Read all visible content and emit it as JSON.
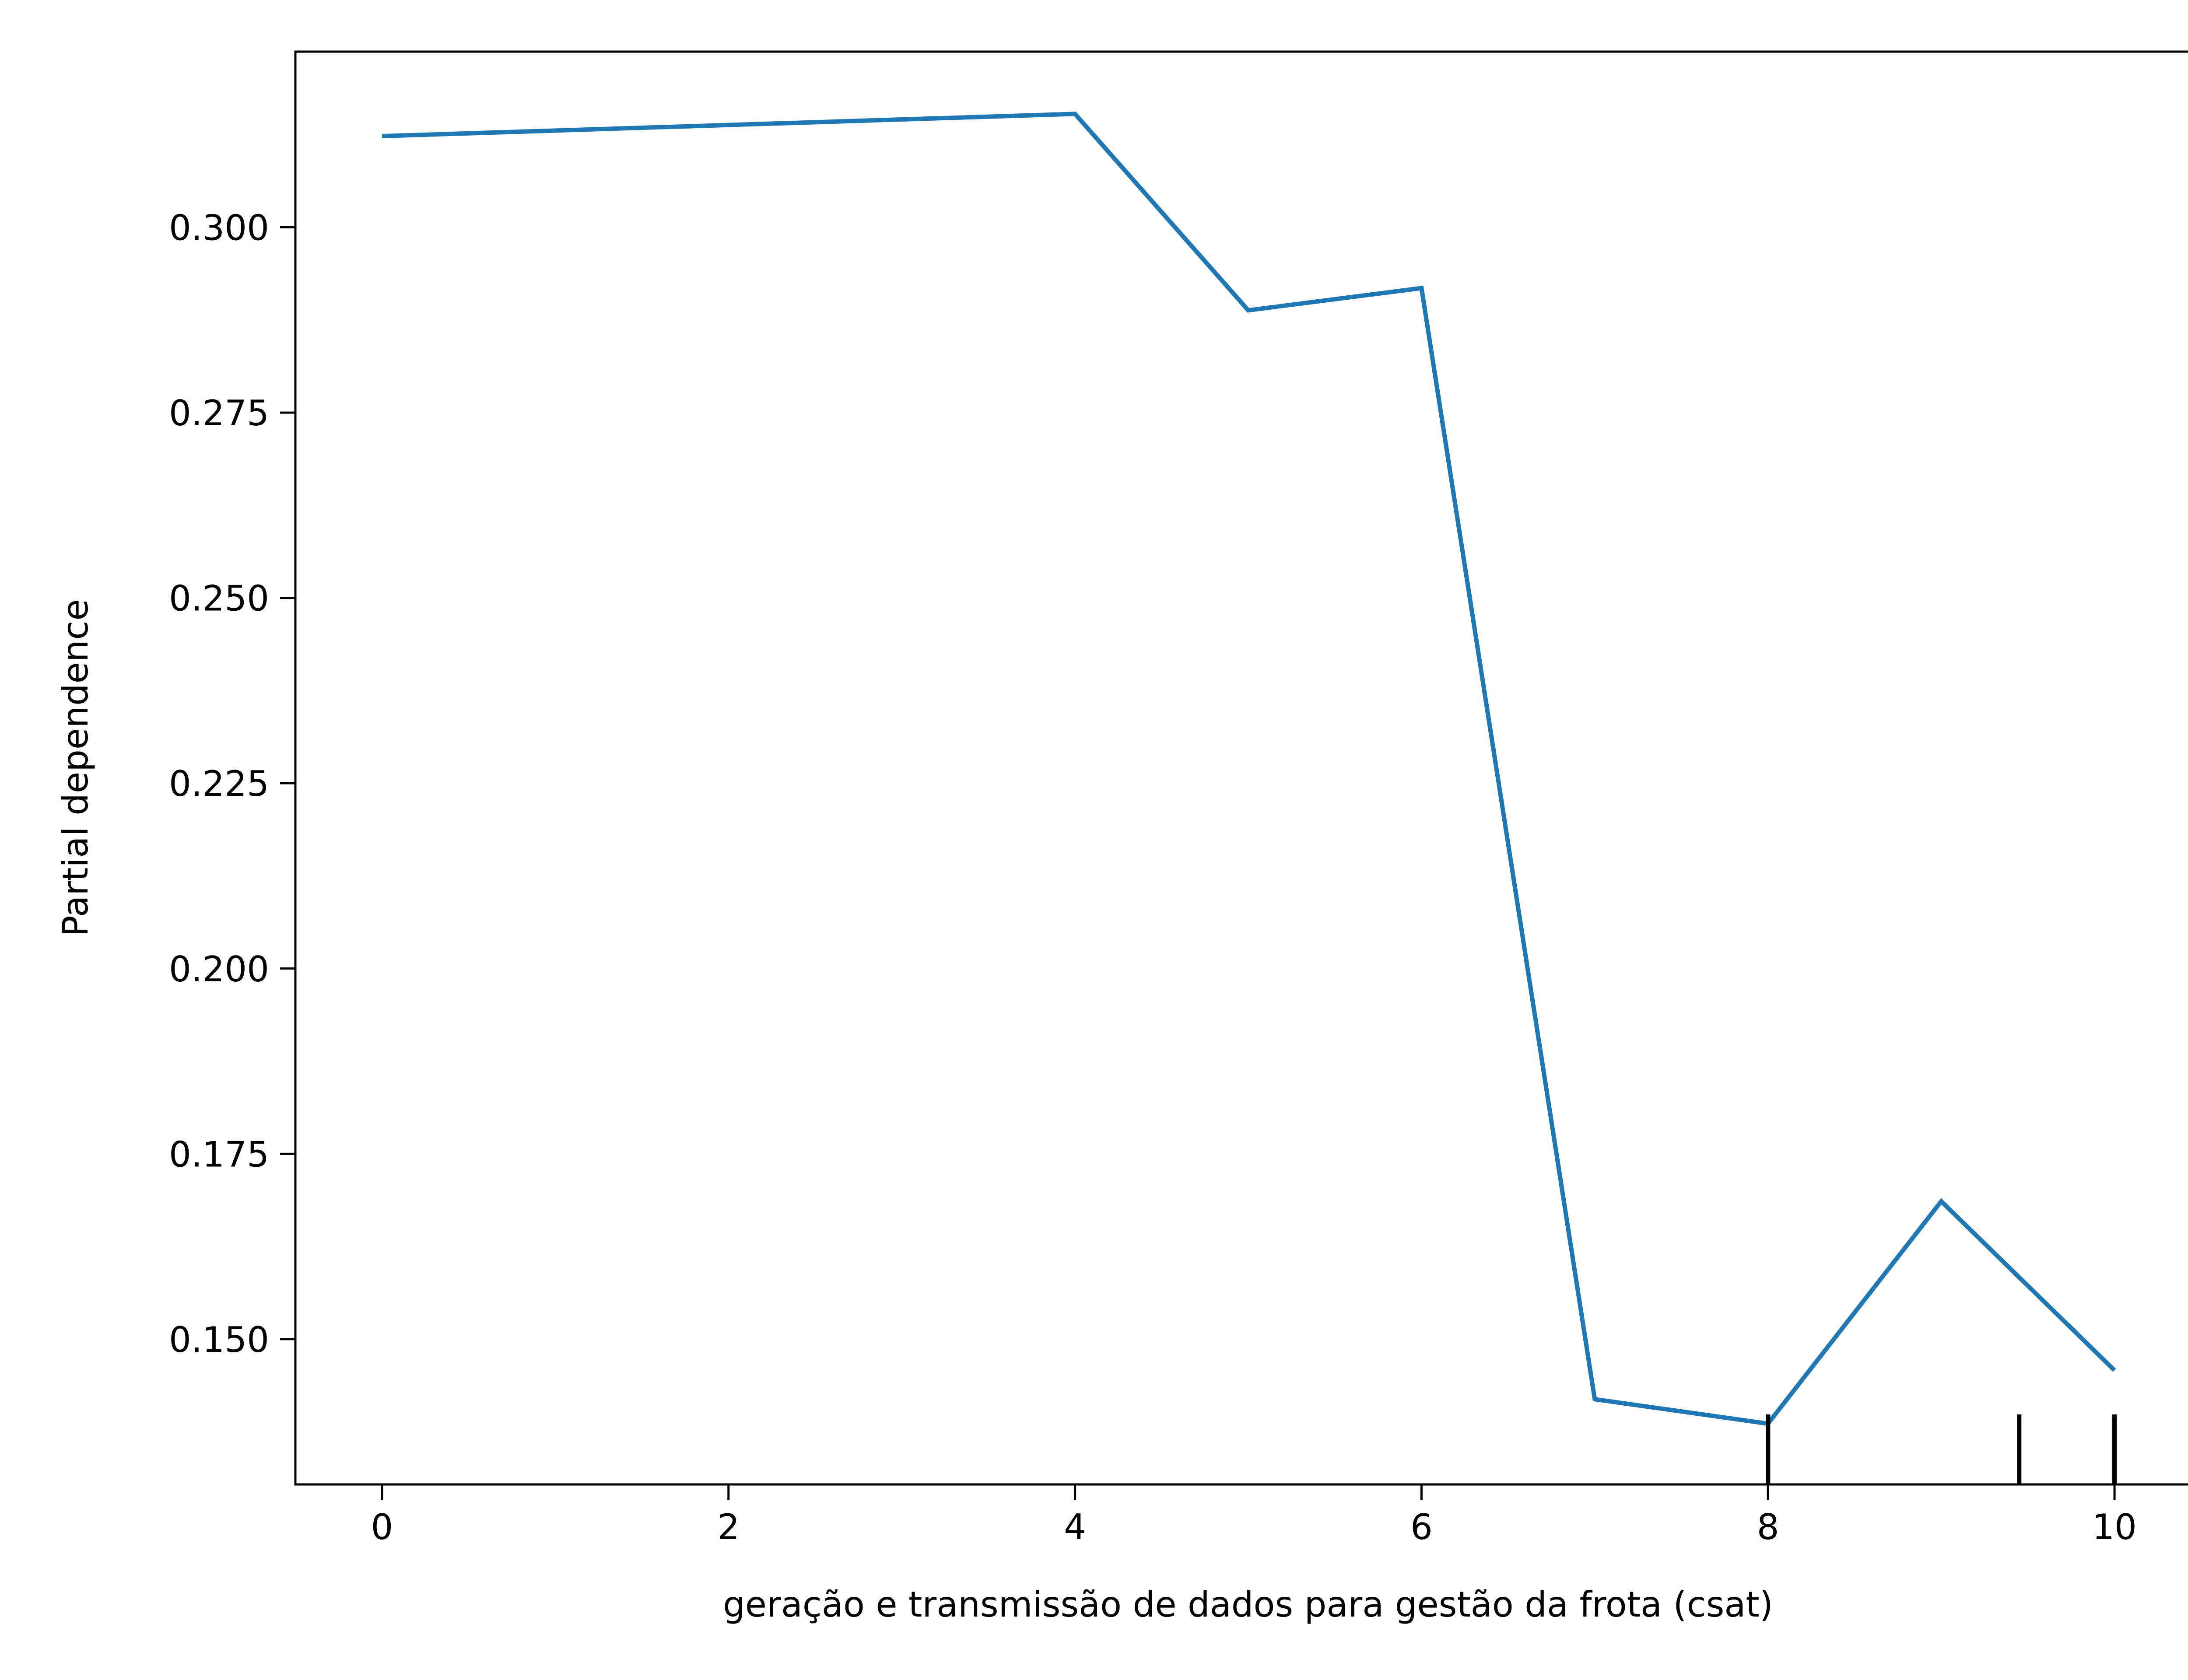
{
  "chart_data": {
    "type": "line",
    "xlabel": "geração e transmissão de dados para gestão da frota (csat)",
    "ylabel": "Partial dependence",
    "xlim": [
      -0.5,
      10.5
    ],
    "ylim": [
      0.1304,
      0.3237
    ],
    "x_ticks": [
      0,
      2,
      4,
      6,
      8,
      10
    ],
    "x_tick_labels": [
      "0",
      "2",
      "4",
      "6",
      "8",
      "10"
    ],
    "y_ticks": [
      0.15,
      0.175,
      0.2,
      0.225,
      0.25,
      0.275,
      0.3
    ],
    "y_tick_labels": [
      "0.150",
      "0.175",
      "0.200",
      "0.225",
      "0.250",
      "0.275",
      "0.300"
    ],
    "grid": false,
    "series": [
      {
        "color": "#1f77b4",
        "x": [
          0,
          4,
          5,
          6,
          7,
          8,
          9,
          10
        ],
        "y": [
          0.3123,
          0.3153,
          0.2888,
          0.2918,
          0.1419,
          0.1386,
          0.1686,
          0.1458
        ]
      }
    ],
    "deciles": [
      8,
      8,
      9.45,
      10
    ]
  }
}
